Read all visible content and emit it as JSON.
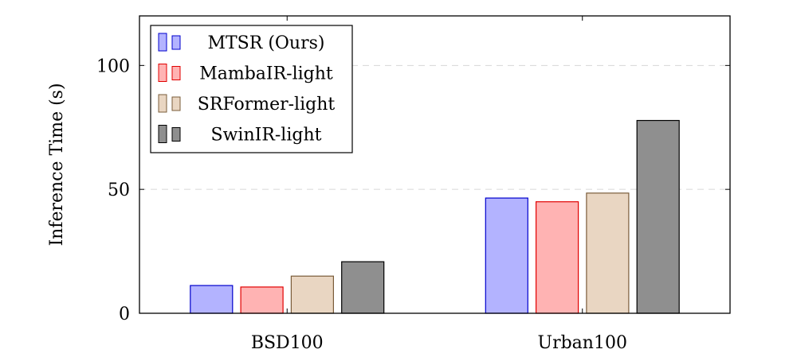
{
  "chart_data": {
    "type": "bar",
    "categories": [
      "BSD100",
      "Urban100"
    ],
    "series": [
      {
        "name": "MTSR (Ours)",
        "values": [
          11.2,
          46.5
        ],
        "fill": "#b3b3ff",
        "stroke": "#0000cc"
      },
      {
        "name": "MambaIR-light",
        "values": [
          10.6,
          45.0
        ],
        "fill": "#ffb3b3",
        "stroke": "#e00000"
      },
      {
        "name": "SRFormer-light",
        "values": [
          15.0,
          48.5
        ],
        "fill": "#e9d6c2",
        "stroke": "#7a5c3a"
      },
      {
        "name": "SwinIR-light",
        "values": [
          20.8,
          77.8
        ],
        "fill": "#8f8f8f",
        "stroke": "#000000"
      }
    ],
    "xlabel": "",
    "ylabel": "Inference Time (s)",
    "ylim": [
      0,
      120
    ],
    "yticks": [
      0,
      50,
      100
    ],
    "grid": "horizontal dashed",
    "legend_position": "top-left"
  }
}
